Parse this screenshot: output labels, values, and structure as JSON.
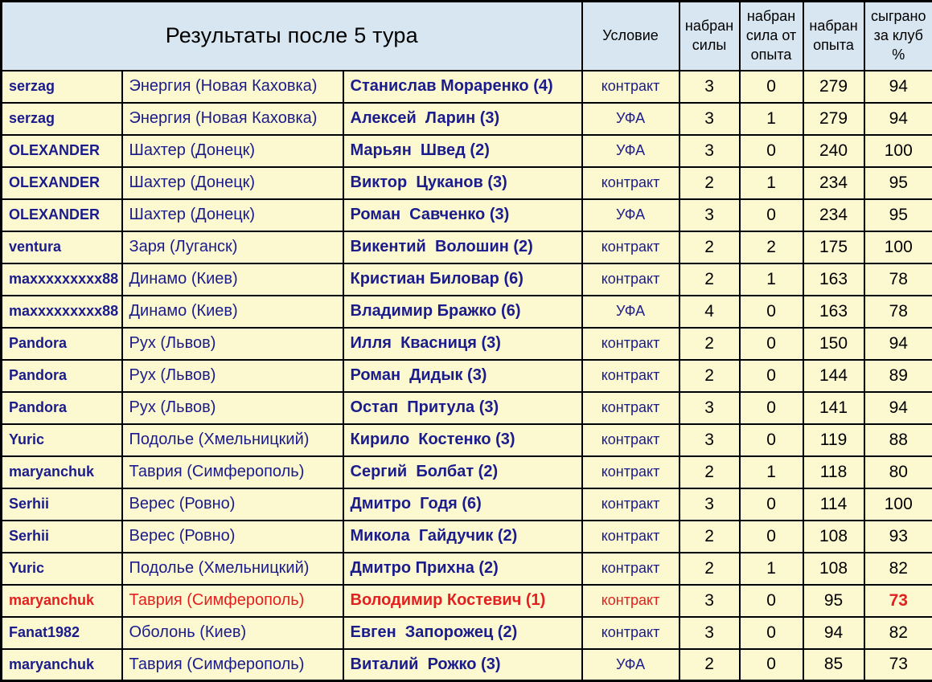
{
  "title": "Результаты после 5 тура",
  "colors": {
    "header_bg": "#d7e6f0",
    "row_bg": "#fcf8d0",
    "border": "#000000",
    "navy_text": "#1b1c8c",
    "red_text": "#e32020",
    "black_text": "#000000"
  },
  "headers": {
    "condition": "Условие",
    "strength": "набран\nсилы",
    "strength_from_exp": "набран\nсила от\nопыта",
    "experience": "набран\nопыта",
    "club_percent": "сыграно\nза клуб\n%"
  },
  "rows": [
    {
      "manager": "serzag",
      "team": "Энергия (Новая Каховка)",
      "player": "Станислав Мораренко (4)",
      "condition": "контракт",
      "strength": 3,
      "strength_from_exp": 0,
      "experience": 279,
      "club_percent": 94,
      "highlight": false
    },
    {
      "manager": "serzag",
      "team": "Энергия (Новая Каховка)",
      "player": "Алексей  Ларин (3)",
      "condition": "УФА",
      "strength": 3,
      "strength_from_exp": 1,
      "experience": 279,
      "club_percent": 94,
      "highlight": false
    },
    {
      "manager": "OLEXANDER",
      "team": "Шахтер (Донецк)",
      "player": "Марьян  Швед (2)",
      "condition": "УФА",
      "strength": 3,
      "strength_from_exp": 0,
      "experience": 240,
      "club_percent": 100,
      "highlight": false
    },
    {
      "manager": "OLEXANDER",
      "team": "Шахтер (Донецк)",
      "player": "Виктор  Цуканов (3)",
      "condition": "контракт",
      "strength": 2,
      "strength_from_exp": 1,
      "experience": 234,
      "club_percent": 95,
      "highlight": false
    },
    {
      "manager": "OLEXANDER",
      "team": "Шахтер (Донецк)",
      "player": "Роман  Савченко (3)",
      "condition": "УФА",
      "strength": 3,
      "strength_from_exp": 0,
      "experience": 234,
      "club_percent": 95,
      "highlight": false
    },
    {
      "manager": "ventura",
      "team": "Заря (Луганск)",
      "player": "Викентий  Волошин (2)",
      "condition": "контракт",
      "strength": 2,
      "strength_from_exp": 2,
      "experience": 175,
      "club_percent": 100,
      "highlight": false
    },
    {
      "manager": "maxxxxxxxxx88",
      "team": "Динамо (Киев)",
      "player": "Кристиан Биловар (6)",
      "condition": "контракт",
      "strength": 2,
      "strength_from_exp": 1,
      "experience": 163,
      "club_percent": 78,
      "highlight": false
    },
    {
      "manager": "maxxxxxxxxx88",
      "team": "Динамо (Киев)",
      "player": "Владимир Бражко (6)",
      "condition": "УФА",
      "strength": 4,
      "strength_from_exp": 0,
      "experience": 163,
      "club_percent": 78,
      "highlight": false
    },
    {
      "manager": "Pandora",
      "team": "Рух (Львов)",
      "player": "Илля  Квасниця (3)",
      "condition": "контракт",
      "strength": 2,
      "strength_from_exp": 0,
      "experience": 150,
      "club_percent": 94,
      "highlight": false
    },
    {
      "manager": "Pandora",
      "team": "Рух (Львов)",
      "player": "Роман  Дидык (3)",
      "condition": "контракт",
      "strength": 2,
      "strength_from_exp": 0,
      "experience": 144,
      "club_percent": 89,
      "highlight": false
    },
    {
      "manager": "Pandora",
      "team": "Рух (Львов)",
      "player": "Остап  Притула (3)",
      "condition": "контракт",
      "strength": 3,
      "strength_from_exp": 0,
      "experience": 141,
      "club_percent": 94,
      "highlight": false
    },
    {
      "manager": "Yuric",
      "team": "Подолье (Хмельницкий)",
      "player": "Кирило  Костенко (3)",
      "condition": "контракт",
      "strength": 3,
      "strength_from_exp": 0,
      "experience": 119,
      "club_percent": 88,
      "highlight": false
    },
    {
      "manager": "maryanchuk",
      "team": "Таврия (Симферополь)",
      "player": "Сергий  Болбат (2)",
      "condition": "контракт",
      "strength": 2,
      "strength_from_exp": 1,
      "experience": 118,
      "club_percent": 80,
      "highlight": false
    },
    {
      "manager": "Serhii",
      "team": "Верес (Ровно)",
      "player": "Дмитро  Годя (6)",
      "condition": "контракт",
      "strength": 3,
      "strength_from_exp": 0,
      "experience": 114,
      "club_percent": 100,
      "highlight": false
    },
    {
      "manager": "Serhii",
      "team": "Верес (Ровно)",
      "player": "Микола  Гайдучик (2)",
      "condition": "контракт",
      "strength": 2,
      "strength_from_exp": 0,
      "experience": 108,
      "club_percent": 93,
      "highlight": false
    },
    {
      "manager": "Yuric",
      "team": "Подолье (Хмельницкий)",
      "player": "Дмитро Прихна (2)",
      "condition": "контракт",
      "strength": 2,
      "strength_from_exp": 1,
      "experience": 108,
      "club_percent": 82,
      "highlight": false
    },
    {
      "manager": "maryanchuk",
      "team": "Таврия (Симферополь)",
      "player": "Володимир Костевич (1)",
      "condition": "контракт",
      "strength": 3,
      "strength_from_exp": 0,
      "experience": 95,
      "club_percent": 73,
      "highlight": true
    },
    {
      "manager": "Fanat1982",
      "team": "Оболонь (Киев)",
      "player": "Евген  Запорожец (2)",
      "condition": "контракт",
      "strength": 3,
      "strength_from_exp": 0,
      "experience": 94,
      "club_percent": 82,
      "highlight": false
    },
    {
      "manager": "maryanchuk",
      "team": "Таврия (Симферополь)",
      "player": "Виталий  Рожко (3)",
      "condition": "УФА",
      "strength": 2,
      "strength_from_exp": 0,
      "experience": 85,
      "club_percent": 73,
      "highlight": false
    }
  ]
}
